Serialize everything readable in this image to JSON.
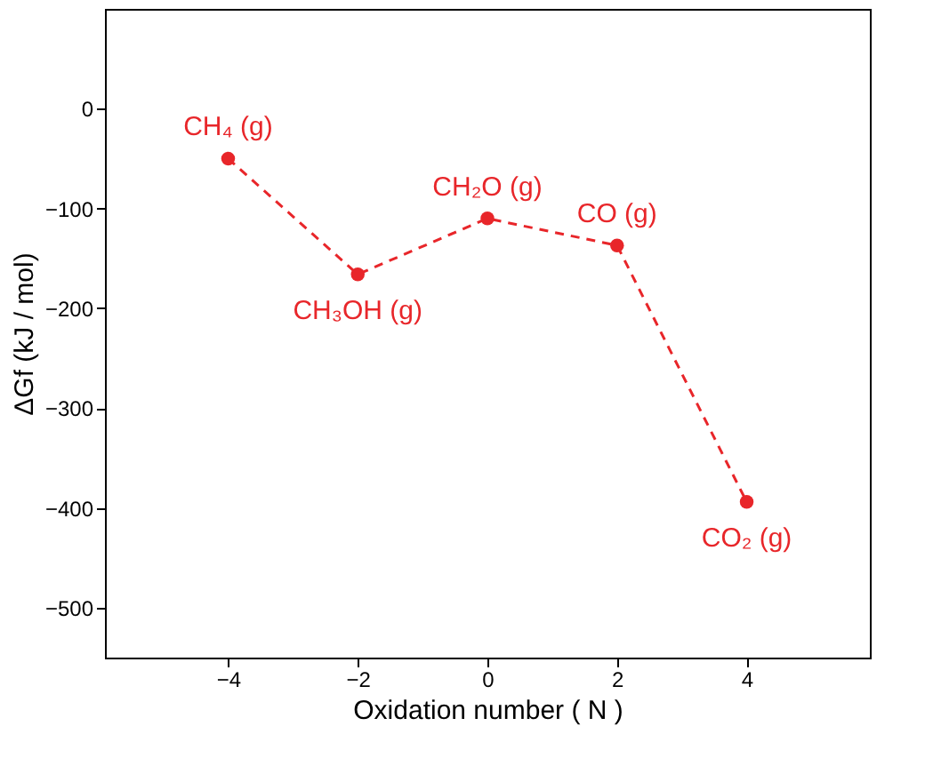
{
  "chart_data": {
    "type": "line",
    "xlabel": "Oxidation number ( N )",
    "ylabel": "ΔGf (kJ / mol)",
    "x": [
      -4,
      -2,
      0,
      2,
      4
    ],
    "series": [
      {
        "color": "#e8262a",
        "values": [
          -50,
          -166,
          -110,
          -137,
          -394
        ]
      }
    ],
    "xlim": [
      -5.9,
      5.9
    ],
    "xticks": [
      -4,
      -2,
      0,
      2,
      4
    ],
    "ylim": [
      -550,
      100
    ],
    "yticks": [
      -500,
      -400,
      -300,
      -200,
      -100,
      0
    ],
    "marker": "circle",
    "line_style": "dashed",
    "grid": false,
    "annotations": [
      {
        "text": "CH₄ (g)",
        "x": -4,
        "y": -50
      },
      {
        "text": "CH₃OH (g)",
        "x": -2,
        "y": -166
      },
      {
        "text": "CH₂O (g)",
        "x": 0,
        "y": -110
      },
      {
        "text": "CO (g)",
        "x": 2,
        "y": -137
      },
      {
        "text": "CO₂ (g)",
        "x": 4,
        "y": -394
      }
    ]
  }
}
